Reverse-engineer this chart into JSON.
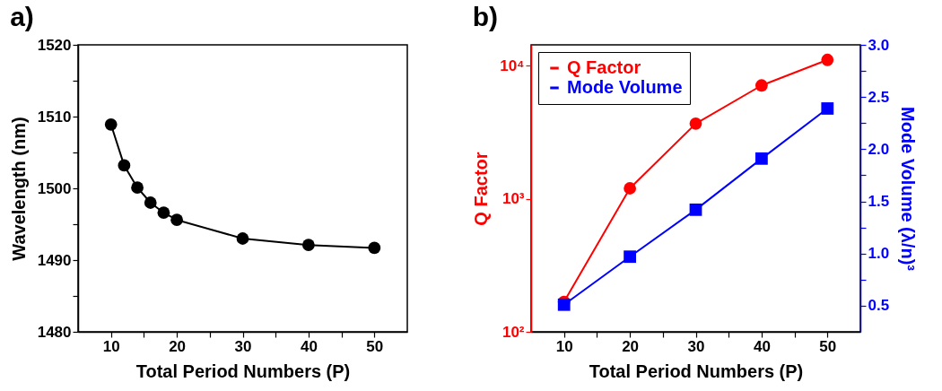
{
  "chart_data": [
    {
      "type": "line",
      "title": "a)",
      "xlabel": "Total Period Numbers (P)",
      "ylabel": "Wavelength (nm)",
      "marker": "circle",
      "x": [
        10,
        12,
        14,
        16,
        18,
        20,
        30,
        40,
        50
      ],
      "series": [
        {
          "color": "#000000",
          "values": [
            1508.9,
            1503.2,
            1500.1,
            1498.0,
            1496.6,
            1495.6,
            1493.0,
            1492.1,
            1491.7
          ]
        }
      ],
      "xlim": [
        5,
        55
      ],
      "xticks": [
        10,
        {
          "value": 15,
          "label": null
        },
        20,
        {
          "value": 25,
          "label": null
        },
        30,
        {
          "value": 35,
          "label": null
        },
        40,
        {
          "value": 45,
          "label": null
        },
        50
      ],
      "ylim": [
        1480,
        1520
      ],
      "yticks": [
        1480,
        {
          "value": 1485,
          "label": null
        },
        1490,
        {
          "value": 1495,
          "label": null
        },
        1500,
        {
          "value": 1505,
          "label": null
        },
        1510,
        {
          "value": 1515,
          "label": null
        },
        1520
      ]
    },
    {
      "type": "line",
      "title": "b)",
      "xlabel": "Total Period Numbers (P)",
      "ylabel": "Q Factor",
      "y2label": "Mode Volume (λ/n)³",
      "log": "y",
      "legend": "top left",
      "x": [
        10,
        20,
        30,
        40,
        50
      ],
      "series": [
        {
          "name": "Q Factor",
          "color": "#ff0000",
          "marker": "circle",
          "values": [
            168,
            1200,
            3680,
            7130,
            11100
          ]
        },
        {
          "name": "Mode Volume",
          "color": "#0000ff",
          "marker": "square",
          "axis": "y2",
          "values": [
            0.51,
            0.97,
            1.42,
            1.91,
            2.39
          ]
        }
      ],
      "xlim": [
        5,
        55
      ],
      "xticks": [
        10,
        {
          "value": 15,
          "label": null
        },
        20,
        {
          "value": 25,
          "label": null
        },
        30,
        {
          "value": 35,
          "label": null
        },
        40,
        {
          "value": 45,
          "label": null
        },
        50
      ],
      "ylim": [
        100,
        14400
      ],
      "yticks": [
        {
          "value": 100,
          "label": "10²"
        },
        {
          "value": 1000,
          "label": "10³"
        },
        {
          "value": 10000,
          "label": "10⁴"
        }
      ],
      "y2lim": [
        0.25,
        3.0
      ],
      "y2ticks": [
        {
          "value": 0.5,
          "label": "0.5"
        },
        {
          "value": 0.75,
          "label": null
        },
        {
          "value": 1.0,
          "label": "1.0"
        },
        {
          "value": 1.25,
          "label": null
        },
        {
          "value": 1.5,
          "label": "1.5"
        },
        {
          "value": 1.75,
          "label": null
        },
        {
          "value": 2.0,
          "label": "2.0"
        },
        {
          "value": 2.25,
          "label": null
        },
        {
          "value": 2.5,
          "label": "2.5"
        },
        {
          "value": 2.75,
          "label": null
        },
        {
          "value": 3.0,
          "label": "3.0"
        }
      ]
    }
  ]
}
